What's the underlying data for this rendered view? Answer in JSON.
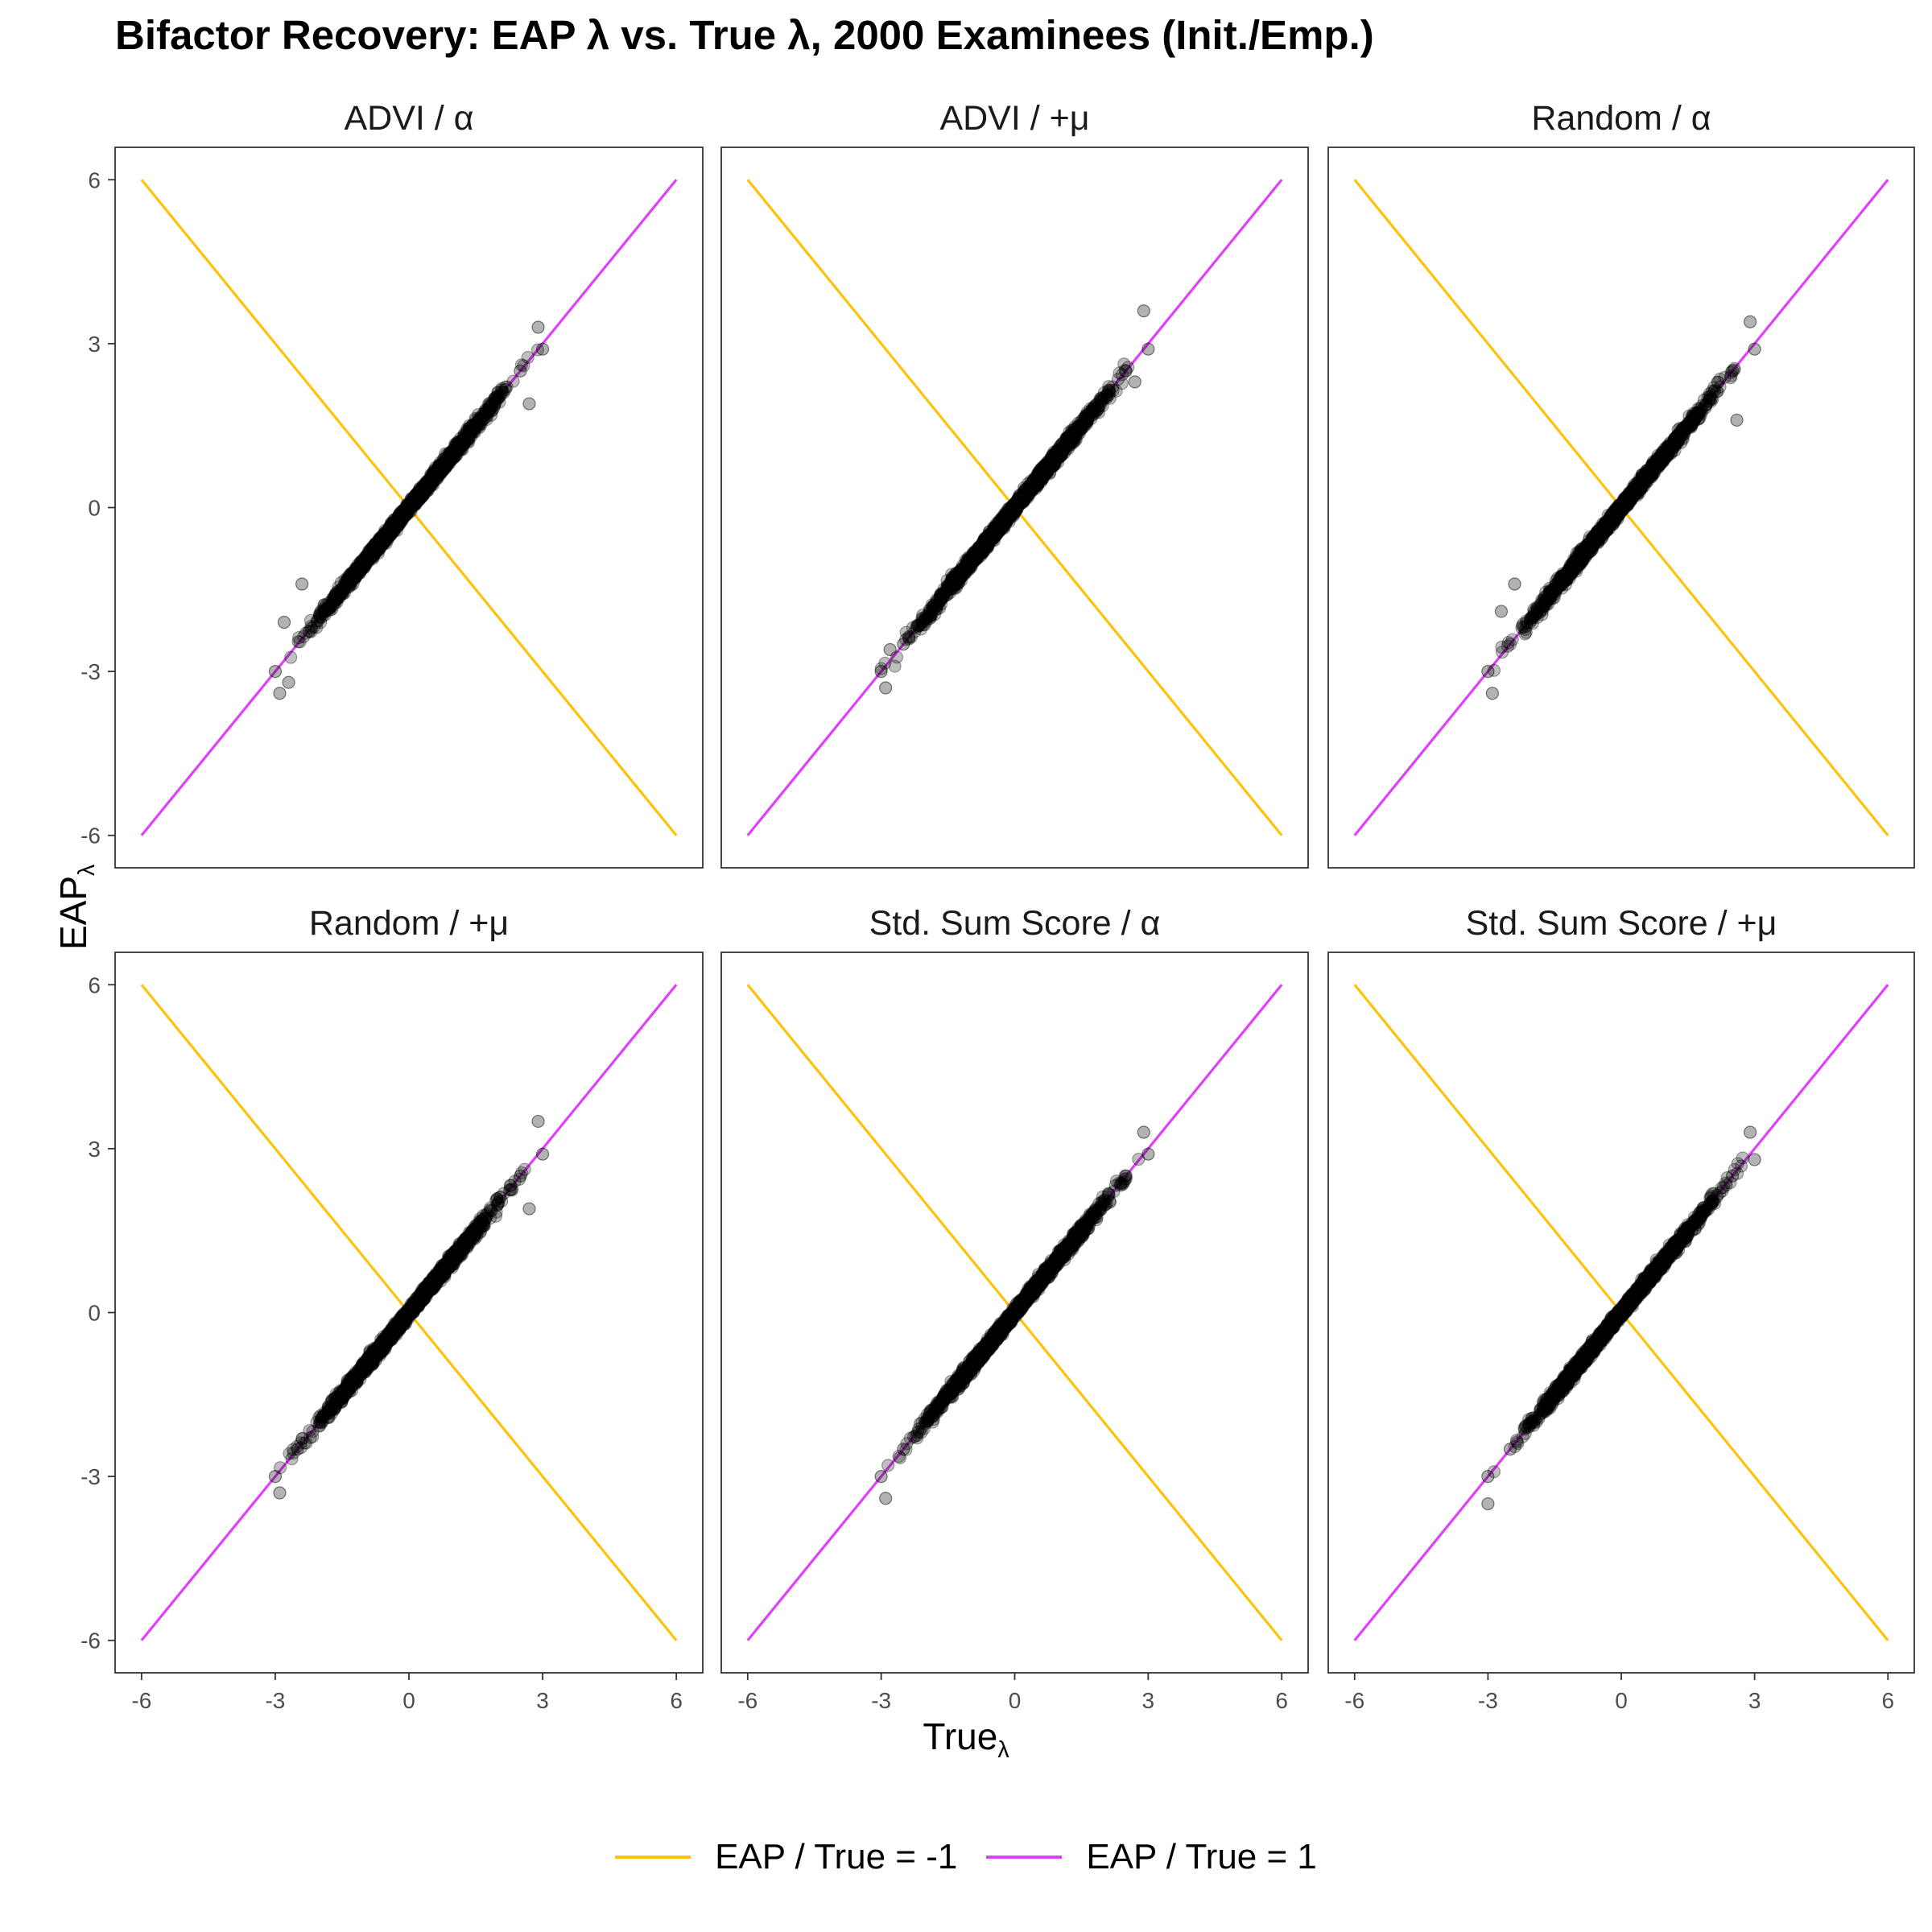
{
  "title": "Bifactor Recovery: EAP λ vs. True λ, 2000 Examinees (Init./Emp.)",
  "axes": {
    "x_label_main": "True",
    "x_label_sub": "λ",
    "y_label_main": "EAP",
    "y_label_sub": "λ"
  },
  "legend": {
    "position": "bottom",
    "items": [
      {
        "label": "EAP / True = -1",
        "color": "#FFC20A"
      },
      {
        "label": "EAP / True = 1",
        "color": "#E040FB"
      }
    ]
  },
  "chart_data": {
    "type": "scatter",
    "layout": "facet grid 2 rows x 3 columns",
    "xlim": [
      -6,
      6
    ],
    "ylim": [
      -6,
      6
    ],
    "x_ticks": [
      -6,
      -3,
      0,
      3,
      6
    ],
    "y_ticks": [
      -6,
      -3,
      0,
      3,
      6
    ],
    "tick_labels": [
      "-6",
      "-3",
      "0",
      "3",
      "6"
    ],
    "reference_lines": [
      {
        "name": "EAP / True = -1",
        "slope": -1,
        "intercept": 0,
        "x": [
          -6,
          6
        ],
        "y": [
          6,
          -6
        ],
        "color": "#FFC20A"
      },
      {
        "name": "EAP / True = 1",
        "slope": 1,
        "intercept": 0,
        "x": [
          -6,
          6
        ],
        "y": [
          -6,
          6
        ],
        "color": "#E040FB"
      }
    ],
    "point_color": "#000000",
    "point_alpha": 0.25,
    "panels": [
      {
        "label": "ADVI / α",
        "points_x_range": [
          -3.0,
          3.0
        ],
        "points_y_range": [
          -3.4,
          3.4
        ],
        "points": [
          [
            -3.0,
            -3.0
          ],
          [
            -2.9,
            -3.4
          ],
          [
            -2.7,
            -3.2
          ],
          [
            -2.8,
            -2.1
          ],
          [
            -2.4,
            -1.4
          ],
          [
            -2.0,
            -2.0
          ],
          [
            -1.5,
            -1.5
          ],
          [
            -1.0,
            -1.0
          ],
          [
            -0.5,
            -0.5
          ],
          [
            0.0,
            0.0
          ],
          [
            0.5,
            0.5
          ],
          [
            1.0,
            1.0
          ],
          [
            1.5,
            1.5
          ],
          [
            2.0,
            2.0
          ],
          [
            2.5,
            2.5
          ],
          [
            2.7,
            1.9
          ],
          [
            2.9,
            3.3
          ],
          [
            3.0,
            2.9
          ]
        ]
      },
      {
        "label": "ADVI / +μ",
        "points_x_range": [
          -3.0,
          3.0
        ],
        "points_y_range": [
          -3.3,
          3.6
        ],
        "points": [
          [
            -3.0,
            -3.0
          ],
          [
            -2.9,
            -3.3
          ],
          [
            -2.8,
            -2.6
          ],
          [
            -2.5,
            -2.5
          ],
          [
            -2.0,
            -2.0
          ],
          [
            -1.5,
            -1.5
          ],
          [
            -1.0,
            -1.0
          ],
          [
            -0.5,
            -0.5
          ],
          [
            0.0,
            0.0
          ],
          [
            0.5,
            0.5
          ],
          [
            1.0,
            1.0
          ],
          [
            1.5,
            1.5
          ],
          [
            2.0,
            2.0
          ],
          [
            2.5,
            2.5
          ],
          [
            2.7,
            2.3
          ],
          [
            2.9,
            3.6
          ],
          [
            3.0,
            2.9
          ]
        ]
      },
      {
        "label": "Random / α",
        "points_x_range": [
          -3.0,
          3.0
        ],
        "points_y_range": [
          -3.4,
          3.4
        ],
        "points": [
          [
            -3.0,
            -3.0
          ],
          [
            -2.9,
            -3.4
          ],
          [
            -2.7,
            -1.9
          ],
          [
            -2.4,
            -1.4
          ],
          [
            -2.0,
            -2.0
          ],
          [
            -1.5,
            -1.5
          ],
          [
            -1.0,
            -1.0
          ],
          [
            -0.5,
            -0.5
          ],
          [
            0.0,
            0.0
          ],
          [
            0.5,
            0.5
          ],
          [
            1.0,
            1.0
          ],
          [
            1.5,
            1.5
          ],
          [
            2.0,
            2.0
          ],
          [
            2.5,
            2.5
          ],
          [
            2.6,
            1.6
          ],
          [
            2.9,
            3.4
          ],
          [
            3.0,
            2.9
          ]
        ]
      },
      {
        "label": "Random / +μ",
        "points_x_range": [
          -3.0,
          3.0
        ],
        "points_y_range": [
          -3.3,
          3.5
        ],
        "points": [
          [
            -3.0,
            -3.0
          ],
          [
            -2.9,
            -3.3
          ],
          [
            -2.5,
            -2.5
          ],
          [
            -2.0,
            -2.0
          ],
          [
            -1.5,
            -1.5
          ],
          [
            -1.0,
            -1.0
          ],
          [
            -0.5,
            -0.5
          ],
          [
            0.0,
            0.0
          ],
          [
            0.5,
            0.5
          ],
          [
            1.0,
            1.0
          ],
          [
            1.5,
            1.5
          ],
          [
            2.0,
            2.0
          ],
          [
            2.5,
            2.5
          ],
          [
            2.7,
            1.9
          ],
          [
            2.9,
            3.5
          ],
          [
            3.0,
            2.9
          ]
        ]
      },
      {
        "label": "Std. Sum Score / α",
        "points_x_range": [
          -3.0,
          3.0
        ],
        "points_y_range": [
          -3.4,
          3.3
        ],
        "points": [
          [
            -3.0,
            -3.0
          ],
          [
            -2.9,
            -3.4
          ],
          [
            -2.5,
            -2.5
          ],
          [
            -2.0,
            -2.0
          ],
          [
            -1.5,
            -1.5
          ],
          [
            -1.0,
            -1.0
          ],
          [
            -0.5,
            -0.5
          ],
          [
            0.0,
            0.0
          ],
          [
            0.5,
            0.5
          ],
          [
            1.0,
            1.0
          ],
          [
            1.5,
            1.5
          ],
          [
            2.0,
            2.0
          ],
          [
            2.5,
            2.5
          ],
          [
            2.9,
            3.3
          ],
          [
            3.0,
            2.9
          ]
        ]
      },
      {
        "label": "Std. Sum Score / +μ",
        "points_x_range": [
          -3.0,
          3.0
        ],
        "points_y_range": [
          -3.5,
          3.3
        ],
        "points": [
          [
            -3.0,
            -3.0
          ],
          [
            -3.0,
            -3.5
          ],
          [
            -2.5,
            -2.5
          ],
          [
            -2.0,
            -2.0
          ],
          [
            -1.5,
            -1.5
          ],
          [
            -1.0,
            -1.0
          ],
          [
            -0.5,
            -0.5
          ],
          [
            0.0,
            0.0
          ],
          [
            0.5,
            0.5
          ],
          [
            1.0,
            1.0
          ],
          [
            1.5,
            1.5
          ],
          [
            2.0,
            2.0
          ],
          [
            2.5,
            2.5
          ],
          [
            2.9,
            3.3
          ],
          [
            3.0,
            2.8
          ]
        ]
      }
    ]
  }
}
